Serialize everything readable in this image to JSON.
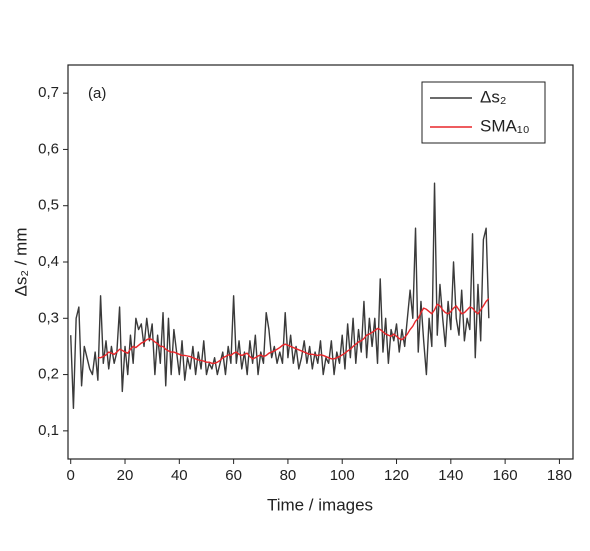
{
  "chart_data": {
    "type": "line",
    "annotation": "(a)",
    "xlabel": "Time / images",
    "ylabel": "Δs₂ / mm",
    "x": [
      0,
      1,
      2,
      3,
      4,
      5,
      6,
      7,
      8,
      9,
      10,
      11,
      12,
      13,
      14,
      15,
      16,
      17,
      18,
      19,
      20,
      21,
      22,
      23,
      24,
      25,
      26,
      27,
      28,
      29,
      30,
      31,
      32,
      33,
      34,
      35,
      36,
      37,
      38,
      39,
      40,
      41,
      42,
      43,
      44,
      45,
      46,
      47,
      48,
      49,
      50,
      51,
      52,
      53,
      54,
      55,
      56,
      57,
      58,
      59,
      60,
      61,
      62,
      63,
      64,
      65,
      66,
      67,
      68,
      69,
      70,
      71,
      72,
      73,
      74,
      75,
      76,
      77,
      78,
      79,
      80,
      81,
      82,
      83,
      84,
      85,
      86,
      87,
      88,
      89,
      90,
      91,
      92,
      93,
      94,
      95,
      96,
      97,
      98,
      99,
      100,
      101,
      102,
      103,
      104,
      105,
      106,
      107,
      108,
      109,
      110,
      111,
      112,
      113,
      114,
      115,
      116,
      117,
      118,
      119,
      120,
      121,
      122,
      123,
      124,
      125,
      126,
      127,
      128,
      129,
      130,
      131,
      132,
      133,
      134,
      135,
      136,
      137,
      138,
      139,
      140,
      141,
      142,
      143,
      144,
      145,
      146,
      147,
      148,
      149,
      150,
      151,
      152,
      153,
      154
    ],
    "series": [
      {
        "name": "Δs₂",
        "color": "#3a3a3a",
        "values": [
          0.27,
          0.14,
          0.3,
          0.32,
          0.18,
          0.25,
          0.23,
          0.21,
          0.2,
          0.24,
          0.19,
          0.34,
          0.22,
          0.26,
          0.21,
          0.25,
          0.22,
          0.24,
          0.32,
          0.17,
          0.25,
          0.2,
          0.27,
          0.22,
          0.3,
          0.28,
          0.29,
          0.25,
          0.3,
          0.26,
          0.29,
          0.2,
          0.27,
          0.22,
          0.31,
          0.18,
          0.3,
          0.2,
          0.28,
          0.24,
          0.2,
          0.26,
          0.19,
          0.23,
          0.21,
          0.25,
          0.2,
          0.24,
          0.21,
          0.26,
          0.2,
          0.22,
          0.21,
          0.23,
          0.2,
          0.22,
          0.24,
          0.2,
          0.25,
          0.22,
          0.34,
          0.22,
          0.26,
          0.21,
          0.24,
          0.2,
          0.26,
          0.22,
          0.27,
          0.2,
          0.24,
          0.22,
          0.31,
          0.28,
          0.23,
          0.25,
          0.22,
          0.24,
          0.22,
          0.31,
          0.23,
          0.27,
          0.22,
          0.25,
          0.21,
          0.23,
          0.26,
          0.22,
          0.25,
          0.21,
          0.24,
          0.22,
          0.26,
          0.2,
          0.23,
          0.22,
          0.26,
          0.2,
          0.24,
          0.22,
          0.27,
          0.21,
          0.29,
          0.23,
          0.3,
          0.22,
          0.28,
          0.24,
          0.33,
          0.23,
          0.3,
          0.25,
          0.3,
          0.22,
          0.37,
          0.24,
          0.3,
          0.22,
          0.28,
          0.26,
          0.29,
          0.24,
          0.28,
          0.25,
          0.3,
          0.35,
          0.3,
          0.46,
          0.24,
          0.33,
          0.26,
          0.2,
          0.3,
          0.25,
          0.54,
          0.27,
          0.36,
          0.3,
          0.25,
          0.33,
          0.28,
          0.4,
          0.3,
          0.27,
          0.35,
          0.26,
          0.3,
          0.28,
          0.45,
          0.23,
          0.36,
          0.26,
          0.44,
          0.46,
          0.3
        ]
      },
      {
        "name": "SMA₁₀",
        "color": "#e8262a",
        "values": [
          null,
          null,
          null,
          null,
          null,
          null,
          null,
          null,
          null,
          null,
          0.23,
          0.23,
          0.232,
          0.235,
          0.24,
          0.238,
          0.236,
          0.24,
          0.245,
          0.243,
          0.24,
          0.238,
          0.245,
          0.25,
          0.248,
          0.252,
          0.256,
          0.258,
          0.262,
          0.264,
          0.262,
          0.258,
          0.255,
          0.25,
          0.25,
          0.245,
          0.242,
          0.24,
          0.24,
          0.238,
          0.236,
          0.234,
          0.234,
          0.233,
          0.232,
          0.23,
          0.228,
          0.226,
          0.225,
          0.224,
          0.222,
          0.222,
          0.22,
          0.22,
          0.222,
          0.225,
          0.23,
          0.232,
          0.235,
          0.234,
          0.238,
          0.24,
          0.236,
          0.234,
          0.236,
          0.238,
          0.232,
          0.228,
          0.23,
          0.233,
          0.235,
          0.232,
          0.234,
          0.238,
          0.24,
          0.242,
          0.245,
          0.248,
          0.252,
          0.254,
          0.252,
          0.25,
          0.248,
          0.246,
          0.244,
          0.242,
          0.24,
          0.238,
          0.236,
          0.236,
          0.235,
          0.234,
          0.235,
          0.234,
          0.232,
          0.23,
          0.228,
          0.228,
          0.23,
          0.232,
          0.235,
          0.238,
          0.242,
          0.245,
          0.25,
          0.254,
          0.258,
          0.26,
          0.264,
          0.27,
          0.272,
          0.275,
          0.278,
          0.282,
          0.28,
          0.276,
          0.272,
          0.27,
          0.268,
          0.272,
          0.268,
          0.264,
          0.262,
          0.266,
          0.272,
          0.28,
          0.286,
          0.295,
          0.3,
          0.31,
          0.318,
          0.316,
          0.312,
          0.308,
          0.315,
          0.325,
          0.322,
          0.315,
          0.31,
          0.308,
          0.312,
          0.318,
          0.322,
          0.315,
          0.308,
          0.31,
          0.315,
          0.32,
          0.318,
          0.312,
          0.308,
          0.315,
          0.322,
          0.33,
          0.335
        ]
      }
    ],
    "xlim": [
      -1,
      185
    ],
    "xticks": [
      0,
      20,
      40,
      60,
      80,
      100,
      120,
      140,
      160,
      180
    ],
    "ylim": [
      0.05,
      0.75
    ],
    "yticks": [
      {
        "value": 0.1,
        "label": "0,1"
      },
      {
        "value": 0.2,
        "label": "0,2"
      },
      {
        "value": 0.3,
        "label": "0,3"
      },
      {
        "value": 0.4,
        "label": "0,4"
      },
      {
        "value": 0.5,
        "label": "0,5"
      },
      {
        "value": 0.6,
        "label": "0,6"
      },
      {
        "value": 0.7,
        "label": "0,7"
      }
    ],
    "legend": "top-right"
  }
}
